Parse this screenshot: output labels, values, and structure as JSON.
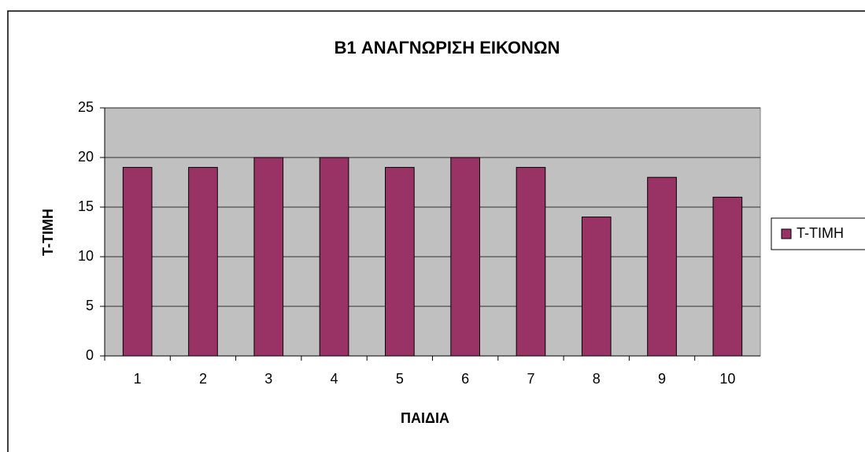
{
  "chart_data": {
    "type": "bar",
    "title": "B1 ΑΝΑΓΝΩΡΙΣΗ ΕΙΚΟΝΩΝ",
    "x_label": "ΠΑΙΔΙΑ",
    "y_label": "T-TIMH",
    "categories": [
      "1",
      "2",
      "3",
      "4",
      "5",
      "6",
      "7",
      "8",
      "9",
      "10"
    ],
    "series": [
      {
        "name": "T-TIMH",
        "color": "#993366",
        "values": [
          19,
          19,
          20,
          20,
          19,
          20,
          19,
          14,
          18,
          16
        ]
      }
    ],
    "ylim": [
      0,
      25
    ],
    "yticks": [
      0,
      5,
      10,
      15,
      20,
      25
    ],
    "grid": true,
    "legend": "right"
  }
}
